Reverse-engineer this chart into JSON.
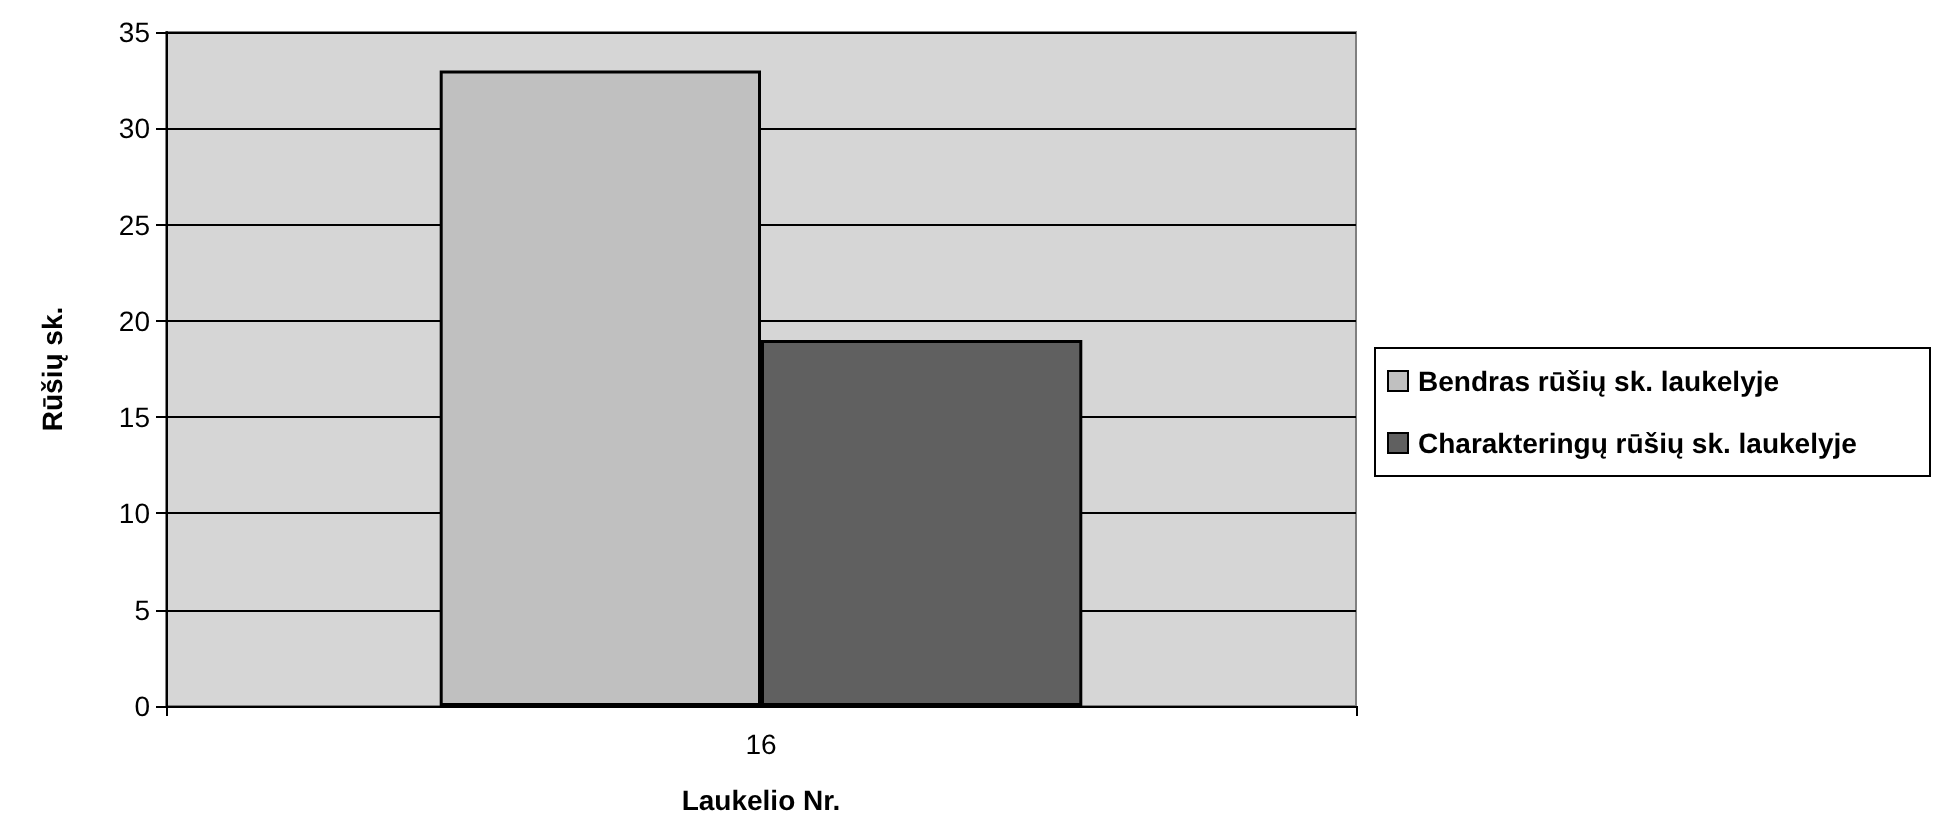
{
  "chart_data": {
    "type": "bar",
    "xlabel": "Laukelio Nr.",
    "ylabel": "Rūšių sk.",
    "categories": [
      "16"
    ],
    "series": [
      {
        "name": "Bendras rūšių sk. laukelyje",
        "color": "#c0c0c0",
        "values": [
          33
        ]
      },
      {
        "name": "Charakteringų rūšių sk. laukelyje",
        "color": "#606060",
        "values": [
          19
        ]
      }
    ],
    "ylim": [
      0,
      35
    ],
    "yticks": [
      0,
      5,
      10,
      15,
      20,
      25,
      30,
      35
    ],
    "grid": "y",
    "legend": "right"
  }
}
